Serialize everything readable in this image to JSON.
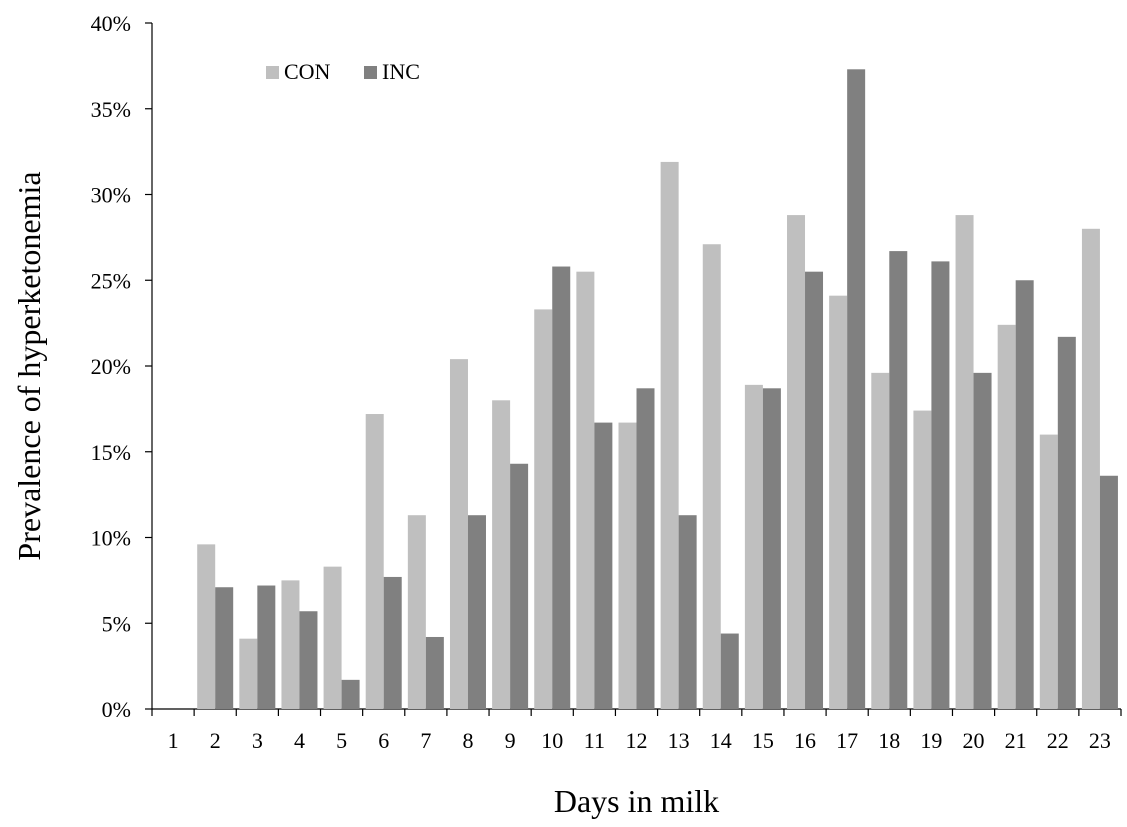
{
  "chart_data": {
    "type": "bar",
    "xlabel": "Days in milk",
    "ylabel": "Prevalence of hyperketonemia",
    "categories": [
      "1",
      "2",
      "3",
      "4",
      "5",
      "6",
      "7",
      "8",
      "9",
      "10",
      "11",
      "12",
      "13",
      "14",
      "15",
      "16",
      "17",
      "18",
      "19",
      "20",
      "21",
      "22",
      "23"
    ],
    "series": [
      {
        "name": "CON",
        "color": "#bfbfbf",
        "values": [
          0,
          9.6,
          4.1,
          7.5,
          8.3,
          17.2,
          11.3,
          20.4,
          18.0,
          23.3,
          25.5,
          16.7,
          31.9,
          27.1,
          18.9,
          28.8,
          24.1,
          19.6,
          17.4,
          28.8,
          22.4,
          16.0,
          28.0
        ]
      },
      {
        "name": "INC",
        "color": "#808080",
        "values": [
          0,
          7.1,
          7.2,
          5.7,
          1.7,
          7.7,
          4.2,
          11.3,
          14.3,
          25.8,
          16.7,
          18.7,
          11.3,
          4.4,
          18.7,
          25.5,
          37.3,
          26.7,
          26.1,
          19.6,
          25.0,
          21.7,
          13.6
        ]
      }
    ],
    "ylim": [
      0,
      40
    ],
    "yticks": [
      "0%",
      "5%",
      "10%",
      "15%",
      "20%",
      "25%",
      "30%",
      "35%",
      "40%"
    ],
    "legend_position": "top-left",
    "grid": false
  }
}
